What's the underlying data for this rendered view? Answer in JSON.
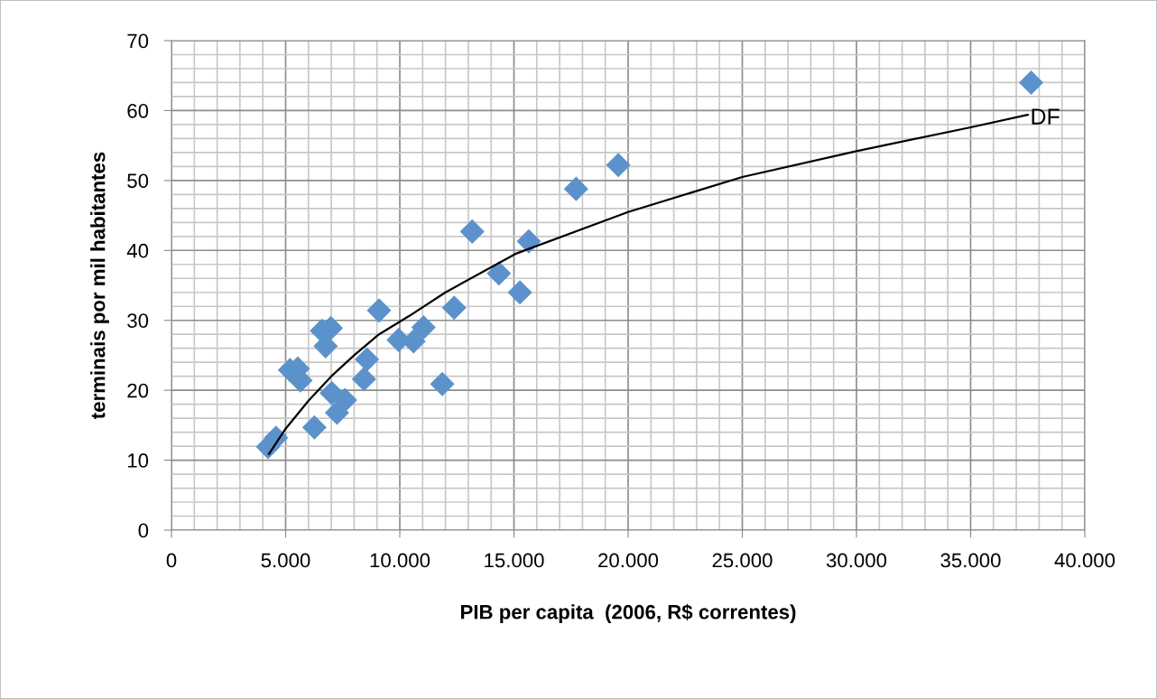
{
  "chart_data": {
    "type": "scatter",
    "xlabel": "PIB per capita  (2006, R$ correntes)",
    "ylabel": "terminais por mil habitantes",
    "xlim": [
      0,
      40000
    ],
    "ylim": [
      0,
      70
    ],
    "xticks": [
      0,
      {
        "value": 5000,
        "label": "5.000"
      },
      {
        "value": 10000,
        "label": "10.000"
      },
      {
        "value": 15000,
        "label": "15.000"
      },
      {
        "value": 20000,
        "label": "20.000"
      },
      {
        "value": 25000,
        "label": "25.000"
      },
      {
        "value": 30000,
        "label": "30.000"
      },
      {
        "value": 35000,
        "label": "35.000"
      },
      {
        "value": 40000,
        "label": "40.000"
      }
    ],
    "yticks": [
      0,
      10,
      20,
      30,
      40,
      50,
      60,
      70
    ],
    "grid": true,
    "legend": false,
    "series": [
      {
        "color": "#5b92cb",
        "marker": "diamond",
        "x": [
          4230,
          4580,
          5190,
          5530,
          5650,
          6590,
          6980,
          6750,
          6260,
          7020,
          7600,
          7250,
          8560,
          8430,
          9090,
          9950,
          10600,
          11040,
          12380,
          11860,
          13170,
          15650,
          14340,
          15260,
          17720,
          19570,
          37650
        ],
        "values": [
          11.9,
          13.2,
          22.9,
          23.1,
          21.4,
          28.5,
          28.9,
          26.3,
          14.7,
          19.6,
          18.6,
          16.8,
          24.4,
          21.6,
          31.4,
          27.2,
          27.0,
          29.0,
          31.8,
          20.9,
          42.7,
          41.3,
          36.7,
          34.0,
          48.8,
          52.2,
          64.0
        ]
      },
      {
        "type": "line",
        "color": "#000000",
        "marker": "none",
        "line_style": "solid",
        "x": [
          4270,
          5000,
          6000,
          7000,
          8000,
          9090,
          10400,
          12000,
          15060,
          20000,
          25000,
          30000,
          35000,
          37500
        ],
        "values": [
          10.9,
          14.5,
          18.5,
          22.0,
          25.0,
          28.0,
          30.6,
          34.0,
          39.5,
          45.5,
          50.5,
          54.2,
          57.6,
          59.4
        ]
      }
    ],
    "annotations": [
      {
        "text": "DF",
        "x": 37500,
        "y": 59.4
      }
    ]
  }
}
